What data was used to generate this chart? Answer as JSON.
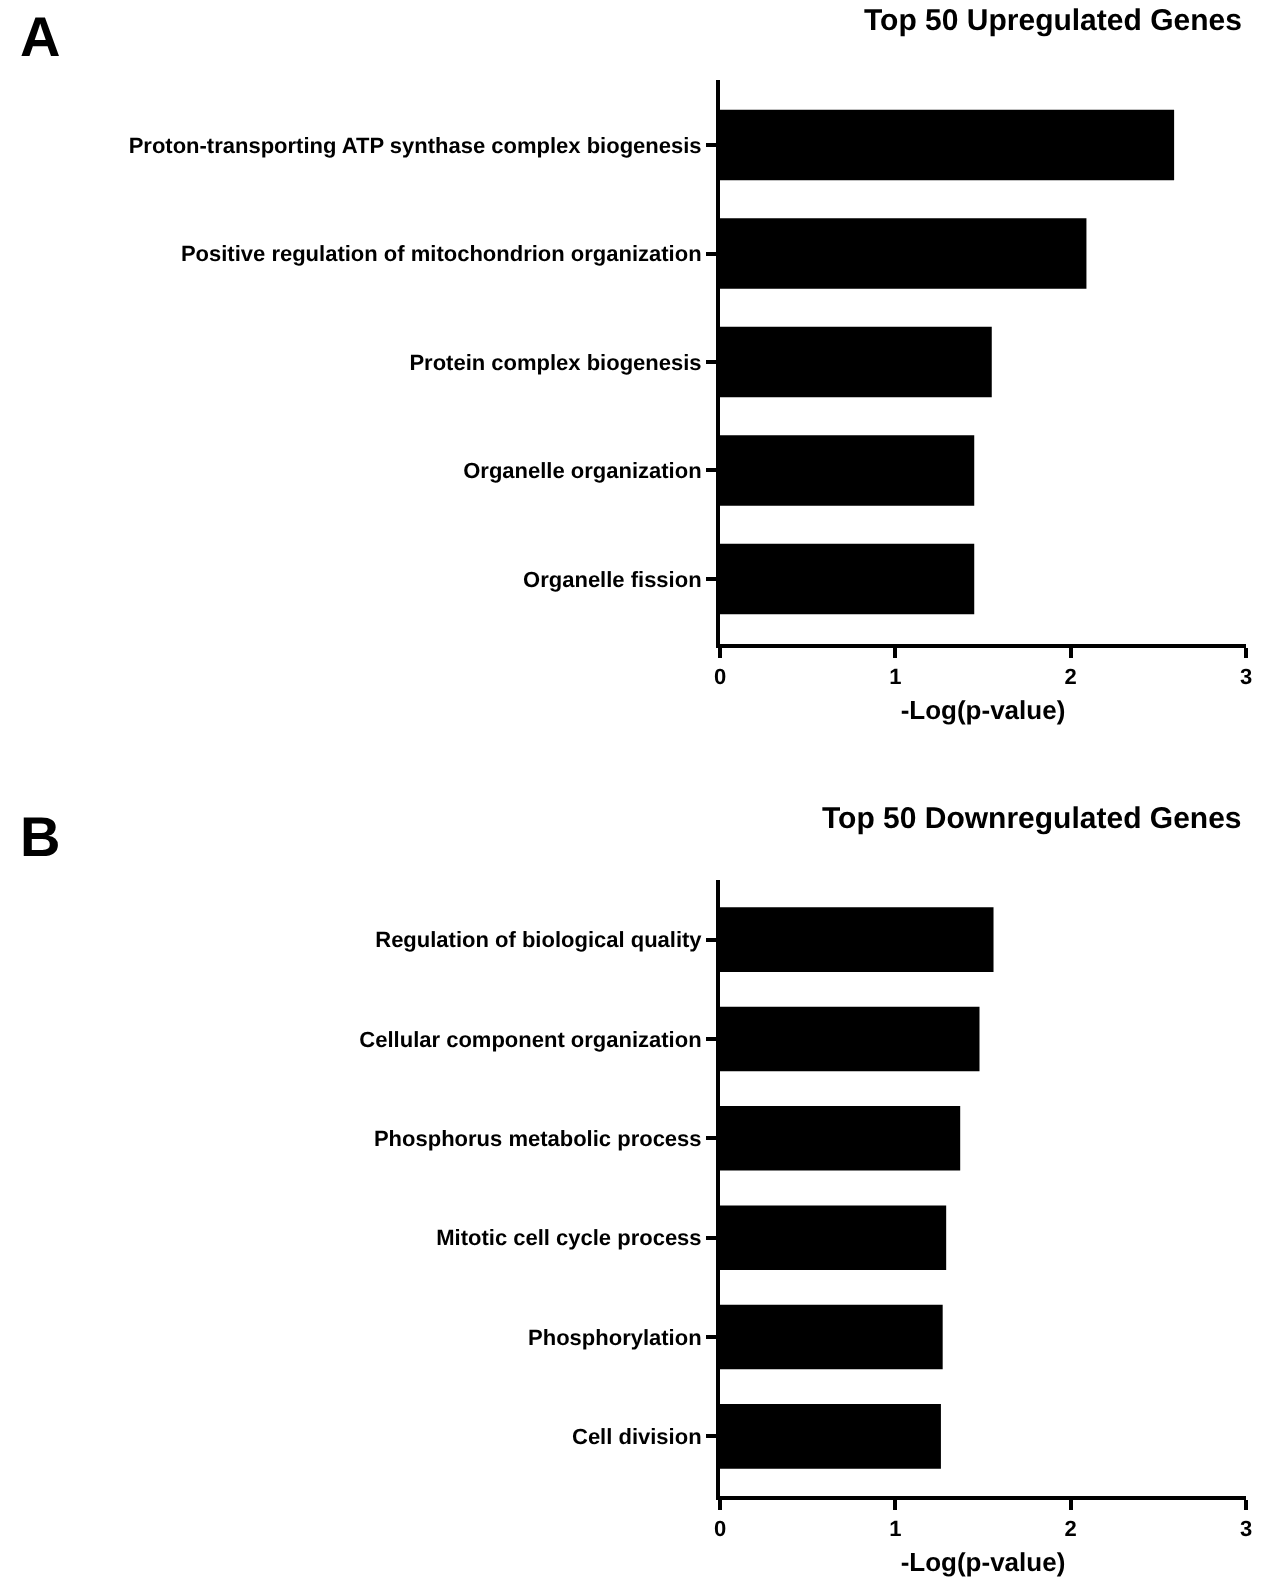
{
  "chart_data": [
    {
      "type": "bar",
      "orientation": "horizontal",
      "title": "Top 50 Upregulated Genes",
      "xlabel": "-Log(p-value)",
      "annotations": [
        "A"
      ],
      "categories": [
        "Proton-transporting ATP synthase complex biogenesis",
        "Positive regulation of mitochondrion organization",
        "Protein complex biogenesis",
        "Organelle organization",
        "Organelle fission"
      ],
      "values": [
        2.59,
        2.09,
        1.55,
        1.45,
        1.45
      ],
      "color": "#000000",
      "xlim": [
        0,
        3
      ],
      "xticks": [
        0,
        1,
        2,
        3
      ]
    },
    {
      "type": "bar",
      "orientation": "horizontal",
      "title": "Top 50 Downregulated Genes",
      "xlabel": "-Log(p-value)",
      "annotations": [
        "B"
      ],
      "categories": [
        "Regulation of biological quality",
        "Cellular component organization",
        "Phosphorus metabolic process",
        "Mitotic cell cycle process",
        "Phosphorylation",
        "Cell division"
      ],
      "values": [
        1.56,
        1.48,
        1.37,
        1.29,
        1.27,
        1.26
      ],
      "color": "#000000",
      "xlim": [
        0,
        3
      ],
      "xticks": [
        0,
        1,
        2,
        3
      ]
    }
  ]
}
